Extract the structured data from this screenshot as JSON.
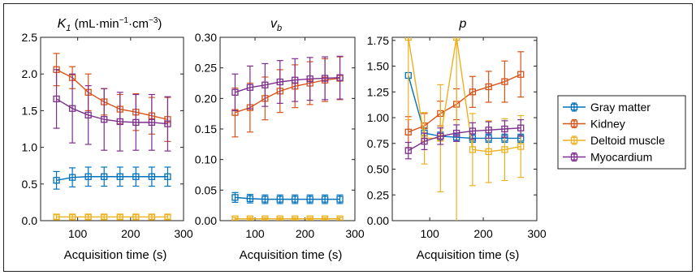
{
  "colors": {
    "gray_matter": "#0072BD",
    "kidney": "#D95319",
    "deltoid_muscle": "#EDB120",
    "myocardium": "#7E2F8E"
  },
  "legend": {
    "placement": "right",
    "entries": [
      "Gray matter",
      "Kidney",
      "Deltoid muscle",
      "Myocardium"
    ]
  },
  "chart_data": [
    {
      "type": "line",
      "title_main": "K",
      "title_sub": "1",
      "title_unit": " (mL·min",
      "title_exp1": "−1",
      "title_mid": "·cm",
      "title_exp2": "−3",
      "title_close": ")",
      "xlabel": "Acquisition time (s)",
      "xlim": [
        30,
        300
      ],
      "xticks": [
        100,
        200,
        300
      ],
      "ylim": [
        0,
        2.5
      ],
      "yticks": [
        "0.0",
        "0.5",
        "1.0",
        "1.5",
        "2.0",
        "2.5"
      ],
      "x": [
        60,
        90,
        120,
        150,
        180,
        210,
        240,
        270
      ],
      "series": [
        {
          "name": "Gray matter",
          "values": [
            0.55,
            0.59,
            0.6,
            0.6,
            0.6,
            0.6,
            0.6,
            0.6
          ],
          "err": [
            0.12,
            0.13,
            0.13,
            0.13,
            0.13,
            0.13,
            0.13,
            0.13
          ]
        },
        {
          "name": "Kidney",
          "values": [
            2.06,
            1.95,
            1.75,
            1.62,
            1.52,
            1.48,
            1.43,
            1.38
          ],
          "err": [
            0.22,
            0.15,
            0.25,
            0.18,
            0.2,
            0.25,
            0.25,
            0.3
          ]
        },
        {
          "name": "Deltoid muscle",
          "values": [
            0.05,
            0.05,
            0.05,
            0.05,
            0.05,
            0.05,
            0.05,
            0.05
          ],
          "err": [
            0.03,
            0.03,
            0.03,
            0.03,
            0.03,
            0.03,
            0.03,
            0.03
          ]
        },
        {
          "name": "Myocardium",
          "values": [
            1.66,
            1.53,
            1.44,
            1.38,
            1.35,
            1.34,
            1.34,
            1.32
          ],
          "err": [
            0.4,
            0.47,
            0.4,
            0.42,
            0.4,
            0.38,
            0.38,
            0.37
          ]
        }
      ]
    },
    {
      "type": "line",
      "title_main": "v",
      "title_sub": "b",
      "xlabel": "Acquisition time (s)",
      "xlim": [
        30,
        300
      ],
      "xticks": [
        100,
        200,
        300
      ],
      "ylim": [
        0,
        0.3
      ],
      "yticks": [
        "0.00",
        "0.05",
        "0.10",
        "0.15",
        "0.20",
        "0.25",
        "0.30"
      ],
      "x": [
        60,
        90,
        120,
        150,
        180,
        210,
        240,
        270
      ],
      "series": [
        {
          "name": "Gray matter",
          "values": [
            0.038,
            0.036,
            0.035,
            0.035,
            0.035,
            0.035,
            0.035,
            0.035
          ],
          "err": [
            0.008,
            0.007,
            0.007,
            0.007,
            0.007,
            0.007,
            0.007,
            0.007
          ]
        },
        {
          "name": "Kidney",
          "values": [
            0.177,
            0.185,
            0.2,
            0.212,
            0.22,
            0.225,
            0.23,
            0.233
          ],
          "err": [
            0.04,
            0.04,
            0.035,
            0.035,
            0.035,
            0.035,
            0.035,
            0.035
          ]
        },
        {
          "name": "Deltoid muscle",
          "values": [
            0.003,
            0.003,
            0.003,
            0.003,
            0.003,
            0.003,
            0.003,
            0.003
          ],
          "err": [
            0.002,
            0.002,
            0.002,
            0.002,
            0.002,
            0.002,
            0.002,
            0.002
          ]
        },
        {
          "name": "Myocardium",
          "values": [
            0.21,
            0.218,
            0.222,
            0.227,
            0.23,
            0.232,
            0.233,
            0.234
          ],
          "err": [
            0.03,
            0.035,
            0.035,
            0.035,
            0.035,
            0.035,
            0.035,
            0.035
          ]
        }
      ]
    },
    {
      "type": "line",
      "title_main": "p",
      "title_sub": "",
      "xlabel": "Acquisition time (s)",
      "xlim": [
        30,
        300
      ],
      "xticks": [
        100,
        200,
        300
      ],
      "ylim": [
        0,
        1.78
      ],
      "yticks": [
        "0.00",
        "0.25",
        "0.50",
        "0.75",
        "1.00",
        "1.25",
        "1.50",
        "1.75"
      ],
      "x": [
        60,
        90,
        120,
        150,
        180,
        210,
        240,
        270
      ],
      "series": [
        {
          "name": "Gray matter",
          "values": [
            1.41,
            0.85,
            0.82,
            0.81,
            0.8,
            0.8,
            0.8,
            0.8
          ],
          "err": [
            0.0,
            0.05,
            0.04,
            0.04,
            0.04,
            0.04,
            0.04,
            0.04
          ]
        },
        {
          "name": "Kidney",
          "values": [
            0.86,
            0.92,
            1.04,
            1.13,
            1.25,
            1.3,
            1.35,
            1.42
          ],
          "err": [
            0.15,
            0.12,
            0.12,
            0.15,
            0.15,
            0.15,
            0.2,
            0.22
          ]
        },
        {
          "name": "Deltoid muscle",
          "values": [
            1.78,
            0.8,
            0.8,
            1.78,
            0.69,
            0.67,
            0.69,
            0.72
          ],
          "err": [
            0.8,
            0.25,
            0.52,
            1.8,
            0.35,
            0.3,
            0.3,
            0.3
          ]
        },
        {
          "name": "Myocardium",
          "values": [
            0.68,
            0.77,
            0.82,
            0.85,
            0.87,
            0.88,
            0.89,
            0.9
          ],
          "err": [
            0.08,
            0.08,
            0.08,
            0.08,
            0.08,
            0.08,
            0.08,
            0.08
          ]
        }
      ]
    }
  ]
}
